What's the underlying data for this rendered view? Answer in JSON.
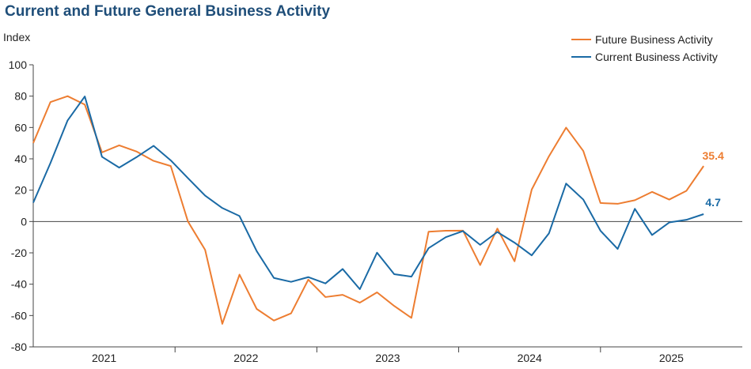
{
  "chart_data": {
    "type": "line",
    "title": "Current and Future General Business Activity",
    "ylabel": "Index",
    "xlabel": "",
    "ylim": [
      -80,
      100
    ],
    "yticks": [
      100,
      80,
      60,
      40,
      20,
      0,
      -20,
      -40,
      -60,
      -80
    ],
    "x_start": 2020.5,
    "x_end": 2025.5,
    "x_ticks": [
      {
        "label": "2021",
        "value": 2021
      },
      {
        "label": "2022",
        "value": 2022
      },
      {
        "label": "2023",
        "value": 2023
      },
      {
        "label": "2024",
        "value": 2024
      },
      {
        "label": "2025",
        "value": 2025
      }
    ],
    "x_tick_positions": [
      2021.5,
      2022.5,
      2023.5,
      2024.5
    ],
    "legend": {
      "position": "top-right"
    },
    "series": [
      {
        "name": "Future Business Activity",
        "color": "#ed7d31",
        "end_label": "35.4",
        "points": [
          [
            2020.5,
            50.1
          ],
          [
            2020.6212,
            76.2
          ],
          [
            2020.7424,
            80.0
          ],
          [
            2020.8636,
            74.6
          ],
          [
            2020.9848,
            44.1
          ],
          [
            2021.1061,
            48.6
          ],
          [
            2021.2273,
            44.7
          ],
          [
            2021.3485,
            38.7
          ],
          [
            2021.4697,
            35.4
          ],
          [
            2021.5909,
            0.0
          ],
          [
            2021.7121,
            -18.1
          ],
          [
            2021.8333,
            -65.3
          ],
          [
            2021.9545,
            -33.9
          ],
          [
            2022.0758,
            -55.8
          ],
          [
            2022.197,
            -63.2
          ],
          [
            2022.3182,
            -58.6
          ],
          [
            2022.4394,
            -37.1
          ],
          [
            2022.5606,
            -48.2
          ],
          [
            2022.6818,
            -46.8
          ],
          [
            2022.803,
            -51.8
          ],
          [
            2022.9242,
            -45.2
          ],
          [
            2023.0455,
            -53.9
          ],
          [
            2023.1667,
            -61.5
          ],
          [
            2023.2879,
            -6.5
          ],
          [
            2023.4091,
            -5.9
          ],
          [
            2023.5303,
            -5.8
          ],
          [
            2023.6515,
            -27.8
          ],
          [
            2023.7727,
            -4.5
          ],
          [
            2023.8939,
            -25.4
          ],
          [
            2024.0152,
            20.4
          ],
          [
            2024.1364,
            41.6
          ],
          [
            2024.2576,
            59.9
          ],
          [
            2024.3788,
            45.0
          ],
          [
            2024.5,
            11.8
          ],
          [
            2024.6212,
            11.3
          ],
          [
            2024.7424,
            13.6
          ],
          [
            2024.8636,
            18.9
          ],
          [
            2024.9848,
            14.0
          ],
          [
            2025.1061,
            19.6
          ],
          [
            2025.2273,
            35.4
          ]
        ]
      },
      {
        "name": "Current Business Activity",
        "color": "#1a6aa5",
        "end_label": "4.7",
        "points": [
          [
            2020.5,
            12.0
          ],
          [
            2020.6212,
            37.3
          ],
          [
            2020.7424,
            64.5
          ],
          [
            2020.8636,
            79.8
          ],
          [
            2020.9848,
            41.3
          ],
          [
            2021.1061,
            34.4
          ],
          [
            2021.2273,
            41.0
          ],
          [
            2021.3485,
            48.3
          ],
          [
            2021.4697,
            39.0
          ],
          [
            2021.5909,
            27.7
          ],
          [
            2021.7121,
            16.5
          ],
          [
            2021.8333,
            8.6
          ],
          [
            2021.9545,
            3.5
          ],
          [
            2022.0758,
            -18.9
          ],
          [
            2022.197,
            -36.0
          ],
          [
            2022.3182,
            -38.5
          ],
          [
            2022.4394,
            -35.5
          ],
          [
            2022.5606,
            -39.5
          ],
          [
            2022.6818,
            -30.3
          ],
          [
            2022.803,
            -43.2
          ],
          [
            2022.9242,
            -19.9
          ],
          [
            2023.0455,
            -33.6
          ],
          [
            2023.1667,
            -35.2
          ],
          [
            2023.2879,
            -17.0
          ],
          [
            2023.4091,
            -10.0
          ],
          [
            2023.5303,
            -6.1
          ],
          [
            2023.6515,
            -14.9
          ],
          [
            2023.7727,
            -6.7
          ],
          [
            2023.8939,
            -13.5
          ],
          [
            2024.0152,
            -21.6
          ],
          [
            2024.1364,
            -7.6
          ],
          [
            2024.2576,
            24.2
          ],
          [
            2024.3788,
            14.0
          ],
          [
            2024.5,
            -5.9
          ],
          [
            2024.6212,
            -17.5
          ],
          [
            2024.7424,
            8.1
          ],
          [
            2024.8636,
            -8.6
          ],
          [
            2024.9848,
            -0.6
          ],
          [
            2025.1061,
            1.1
          ],
          [
            2025.2273,
            4.7
          ]
        ]
      }
    ]
  }
}
